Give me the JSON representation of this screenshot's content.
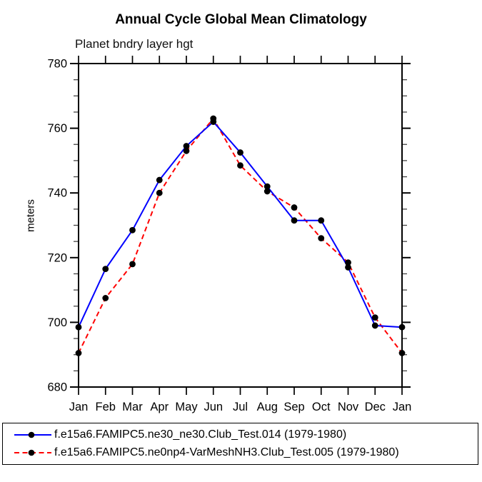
{
  "chart_data": {
    "type": "line",
    "title": "Annual Cycle Global Mean Climatology",
    "subtitle": "Planet bndry layer hgt",
    "xlabel": "",
    "ylabel": "meters",
    "x_tick_labels": [
      "Jan",
      "Feb",
      "Mar",
      "Apr",
      "May",
      "Jun",
      "Jul",
      "Aug",
      "Sep",
      "Oct",
      "Nov",
      "Dec",
      "Jan"
    ],
    "ylim": [
      680,
      780
    ],
    "y_major_ticks": [
      680,
      700,
      720,
      740,
      760,
      780
    ],
    "y_minor_tick_step": 5,
    "grid": false,
    "legend_position": "bottom",
    "axis_color": "#000000",
    "marker_color": "#000000",
    "series": [
      {
        "name": "f.e15a6.FAMIPC5.ne30_ne30.Club_Test.014 (1979-1980)",
        "color": "#0000ff",
        "style": "solid",
        "marker": "filled-circle",
        "values": [
          698.5,
          716.5,
          728.5,
          744.0,
          754.5,
          762.0,
          752.5,
          742.0,
          731.5,
          731.5,
          717.0,
          699.0,
          698.5
        ]
      },
      {
        "name": "f.e15a6.FAMIPC5.ne0np4-VarMeshNH3.Club_Test.005 (1979-1980)",
        "color": "#ff0000",
        "style": "dashed",
        "marker": "filled-circle",
        "values": [
          690.5,
          707.5,
          718.0,
          740.0,
          753.0,
          763.0,
          748.5,
          740.5,
          735.5,
          726.0,
          718.5,
          701.5,
          690.5
        ]
      }
    ]
  }
}
